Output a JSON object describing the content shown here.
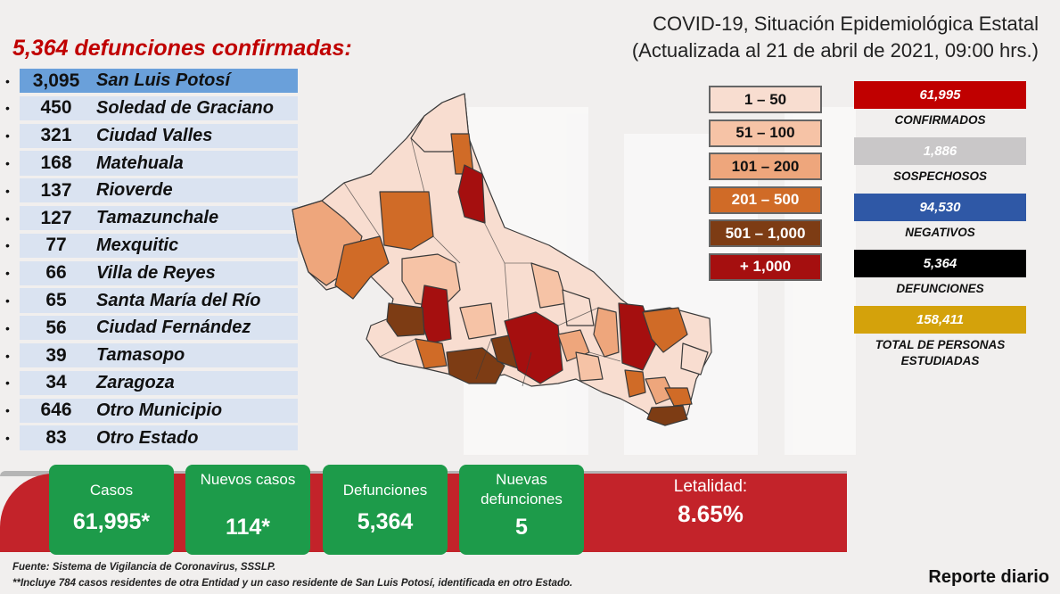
{
  "header": {
    "title_line1": "COVID-19, Situación Epidemiológica Estatal",
    "title_line2": "(Actualizada al 21 de abril de 2021, 09:00 hrs.)"
  },
  "deaths_title": "5,364 defunciones confirmadas:",
  "municipalities": [
    {
      "bullet": "•",
      "count": "3,095",
      "name": "San Luis Potosí"
    },
    {
      "bullet": "•",
      "count": "450",
      "name": "Soledad de Graciano"
    },
    {
      "bullet": "•",
      "count": "321",
      "name": "Ciudad Valles"
    },
    {
      "bullet": "•",
      "count": "168",
      "name": "Matehuala"
    },
    {
      "bullet": "•",
      "count": "137",
      "name": "Rioverde"
    },
    {
      "bullet": "•",
      "count": "127",
      "name": "Tamazunchale"
    },
    {
      "bullet": "•",
      "count": "77",
      "name": "Mexquitic"
    },
    {
      "bullet": "•",
      "count": "66",
      "name": "Villa de Reyes"
    },
    {
      "bullet": "•",
      "count": "65",
      "name": "Santa María del Río"
    },
    {
      "bullet": "•",
      "count": "56",
      "name": "Ciudad Fernández"
    },
    {
      "bullet": "•",
      "count": "39",
      "name": "Tamasopo"
    },
    {
      "bullet": "•",
      "count": "34",
      "name": "Zaragoza"
    },
    {
      "bullet": "•",
      "count": "646",
      "name": "Otro Municipio"
    },
    {
      "bullet": "•",
      "count": "83",
      "name": "Otro Estado"
    }
  ],
  "legend": [
    {
      "label": "1 – 50",
      "color": "#f8ddd0"
    },
    {
      "label": "51 – 100",
      "color": "#f6c3a6"
    },
    {
      "label": "101 – 200",
      "color": "#eea67c"
    },
    {
      "label": "201 – 500",
      "color": "#d06b27"
    },
    {
      "label": "501 – 1,000",
      "color": "#7d3c14"
    },
    {
      "label": "+ 1,000",
      "color": "#a50f0f"
    }
  ],
  "stats": [
    {
      "value": "61,995",
      "label": "CONFIRMADOS",
      "color": "#c00000"
    },
    {
      "value": "1,886",
      "label": "SOSPECHOSOS",
      "color": "#c9c7c8"
    },
    {
      "value": "94,530",
      "label": "NEGATIVOS",
      "color": "#2f58a6"
    },
    {
      "value": "5,364",
      "label": "DEFUNCIONES",
      "color": "#000000"
    },
    {
      "value": "158,411",
      "label": "TOTAL DE PERSONAS ESTUDIADAS",
      "color": "#d4a20b"
    }
  ],
  "cards": [
    {
      "label": "Casos",
      "value": "61,995*"
    },
    {
      "label": "Nuevos casos",
      "value": "114*"
    },
    {
      "label": "Defunciones",
      "value": "5,364"
    },
    {
      "label": "Nuevas defunciones",
      "value": "5"
    }
  ],
  "letalidad": {
    "label": "Letalidad:",
    "value": "8.65%"
  },
  "footer": {
    "source": "Fuente: Sistema de Vigilancia de Coronavirus, SSSLP.",
    "note": "**Incluye 784 casos residentes de otra Entidad y un caso residente de San Luis Potosí, identificada en otro Estado.",
    "report": "Reporte diario"
  },
  "colors": {
    "band": "#c3232a",
    "card": "#1d9b4a",
    "list_highlight": "#6aa0da",
    "list_row": "#dae3f1"
  }
}
